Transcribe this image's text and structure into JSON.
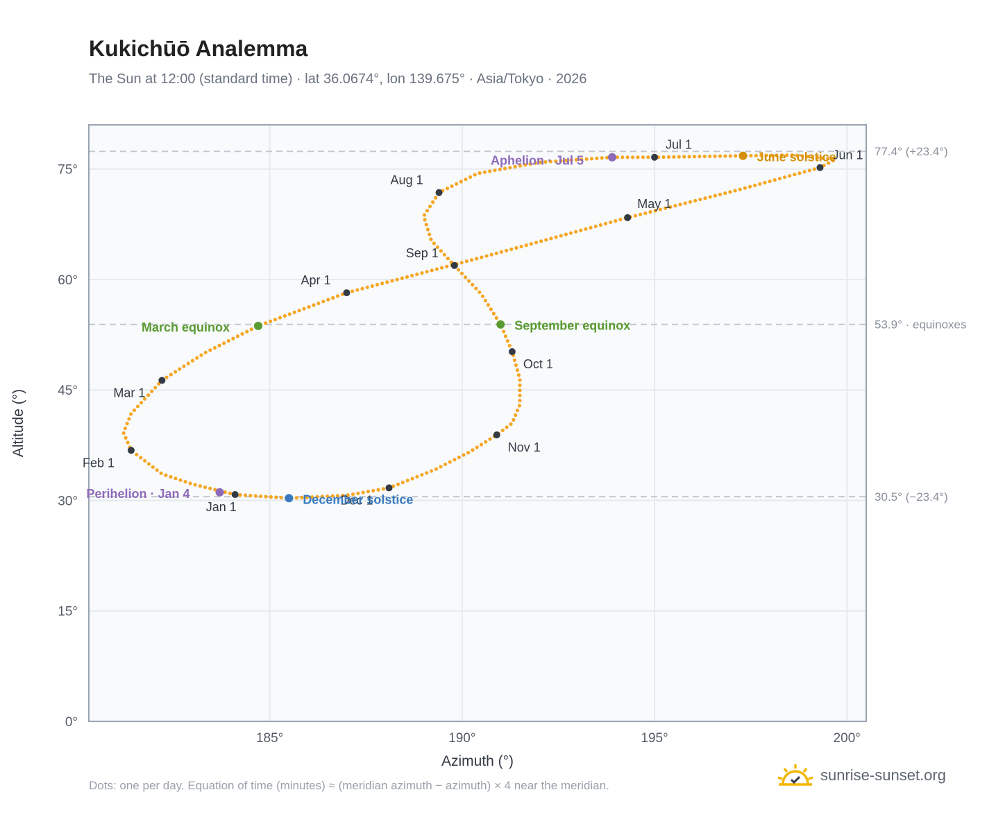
{
  "page": {
    "title": "Kukichūō Analemma",
    "subtitle": "The Sun at 12:00 (standard time) · lat 36.0674°, lon 139.675° · Asia/Tokyo · 2026",
    "footnote": "Dots: one per day. Equation of time (minutes) ≈ (meridian azimuth − azimuth) × 4 near the meridian.",
    "brand": "sunrise-sunset.org"
  },
  "colors": {
    "curve": "#f5a623",
    "month_marker": "#333a44",
    "equinox": "#5a9a32",
    "june_solstice": "#d4900a",
    "december_solstice": "#3a7bbf",
    "apsis": "#8e6bb8",
    "grid": "#e6eaef",
    "plot_bg": "#f8fafc",
    "frame": "#9aa4b2",
    "refline": "#c2c8d0"
  },
  "chart_data": {
    "type": "scatter",
    "title": "Kukichūō Analemma",
    "xlabel": "Azimuth (°)",
    "ylabel": "Altitude (°)",
    "xlim": [
      180.3,
      200.5
    ],
    "ylim": [
      0,
      81
    ],
    "x_ticks": [
      185,
      190,
      195,
      200
    ],
    "x_tick_labels": [
      "185°",
      "190°",
      "195°",
      "200°"
    ],
    "y_ticks": [
      0,
      15,
      30,
      45,
      60,
      75
    ],
    "y_tick_labels": [
      "0°",
      "15°",
      "30°",
      "45°",
      "60°",
      "75°"
    ],
    "grid": true,
    "reference_lines": [
      {
        "y": 77.4,
        "label": "77.4° (+23.4°)"
      },
      {
        "y": 53.9,
        "label": "53.9° · equinoxes"
      },
      {
        "y": 30.5,
        "label": "30.5° (−23.4°)"
      }
    ],
    "month_markers": [
      {
        "label": "Jan 1",
        "az": 184.1,
        "alt": 30.8
      },
      {
        "label": "Feb 1",
        "az": 181.4,
        "alt": 36.8
      },
      {
        "label": "Mar 1",
        "az": 182.2,
        "alt": 46.3
      },
      {
        "label": "Apr 1",
        "az": 187.0,
        "alt": 58.2
      },
      {
        "label": "May 1",
        "az": 194.3,
        "alt": 68.4
      },
      {
        "label": "Jun 1",
        "az": 199.3,
        "alt": 75.2
      },
      {
        "label": "Jul 1",
        "az": 195.0,
        "alt": 76.6
      },
      {
        "label": "Aug 1",
        "az": 189.4,
        "alt": 71.8
      },
      {
        "label": "Sep 1",
        "az": 189.8,
        "alt": 61.9
      },
      {
        "label": "Oct 1",
        "az": 191.3,
        "alt": 50.2
      },
      {
        "label": "Nov 1",
        "az": 190.9,
        "alt": 38.9
      },
      {
        "label": "Dec 1",
        "az": 188.1,
        "alt": 31.7
      }
    ],
    "events": [
      {
        "label": "March equinox",
        "az": 184.7,
        "alt": 53.7,
        "kind": "equinox"
      },
      {
        "label": "September equinox",
        "az": 191.0,
        "alt": 53.9,
        "kind": "equinox"
      },
      {
        "label": "June solstice",
        "az": 197.3,
        "alt": 76.8,
        "kind": "june_solstice"
      },
      {
        "label": "December solstice",
        "az": 185.5,
        "alt": 30.3,
        "kind": "december_solstice"
      },
      {
        "label": "Perihelion · Jan 4",
        "az": 183.7,
        "alt": 31.1,
        "kind": "apsis"
      },
      {
        "label": "Aphelion · Jul 5",
        "az": 193.9,
        "alt": 76.6,
        "kind": "apsis"
      }
    ],
    "path": [
      [
        184.1,
        30.8
      ],
      [
        183.0,
        32.2
      ],
      [
        182.2,
        33.6
      ],
      [
        181.4,
        36.8
      ],
      [
        181.2,
        39.2
      ],
      [
        181.4,
        41.8
      ],
      [
        182.2,
        46.3
      ],
      [
        183.3,
        50.0
      ],
      [
        184.7,
        53.7
      ],
      [
        187.0,
        58.2
      ],
      [
        190.5,
        63.0
      ],
      [
        194.3,
        68.4
      ],
      [
        197.2,
        72.2
      ],
      [
        199.3,
        75.2
      ],
      [
        199.7,
        76.3
      ],
      [
        198.6,
        76.9
      ],
      [
        197.3,
        76.8
      ],
      [
        195.0,
        76.6
      ],
      [
        193.9,
        76.6
      ],
      [
        192.0,
        75.9
      ],
      [
        190.4,
        74.4
      ],
      [
        189.4,
        71.8
      ],
      [
        189.0,
        68.6
      ],
      [
        189.2,
        65.3
      ],
      [
        189.8,
        61.9
      ],
      [
        190.5,
        58.0
      ],
      [
        191.0,
        53.9
      ],
      [
        191.3,
        50.2
      ],
      [
        191.5,
        46.5
      ],
      [
        191.5,
        43.0
      ],
      [
        191.3,
        40.5
      ],
      [
        190.9,
        38.9
      ],
      [
        190.2,
        36.6
      ],
      [
        189.3,
        34.2
      ],
      [
        188.1,
        31.7
      ],
      [
        187.0,
        30.7
      ],
      [
        185.5,
        30.3
      ],
      [
        184.1,
        30.8
      ]
    ]
  }
}
